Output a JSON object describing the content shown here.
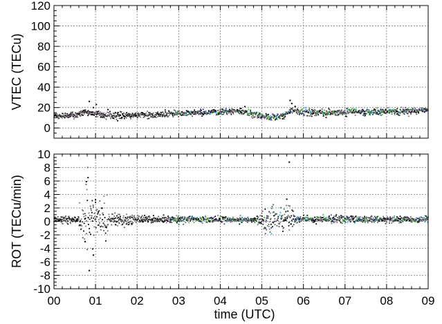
{
  "chart_data": [
    {
      "type": "scatter",
      "title": "",
      "ylabel": "VTEC (TECu)",
      "xlabel": "",
      "xlim": [
        0,
        9
      ],
      "ylim": [
        -10,
        120
      ],
      "yticks": [
        0,
        20,
        40,
        60,
        80,
        100,
        120
      ],
      "xticks": [
        0,
        1,
        2,
        3,
        4,
        5,
        6,
        7,
        8,
        9
      ],
      "show_x_tick_labels": false,
      "grid": true,
      "series_colors": [
        "#000000",
        "#555555",
        "#2f8f2f",
        "#3fbf3f",
        "#1a2a6e",
        "#2aa8c8",
        "#8a6a8a",
        "#777777"
      ],
      "baseline": [
        [
          0.0,
          12
        ],
        [
          0.5,
          12
        ],
        [
          0.75,
          16
        ],
        [
          1.0,
          14
        ],
        [
          1.5,
          12
        ],
        [
          2.0,
          12.5
        ],
        [
          2.5,
          13
        ],
        [
          3.0,
          14
        ],
        [
          3.5,
          15
        ],
        [
          4.0,
          15.5
        ],
        [
          4.5,
          16.5
        ],
        [
          4.8,
          14
        ],
        [
          5.0,
          11
        ],
        [
          5.3,
          11
        ],
        [
          5.6,
          13
        ],
        [
          5.7,
          18
        ],
        [
          5.9,
          16
        ],
        [
          6.5,
          15
        ],
        [
          7.0,
          15
        ],
        [
          7.5,
          15.5
        ],
        [
          8.0,
          16
        ],
        [
          8.5,
          16.5
        ],
        [
          9.0,
          17
        ]
      ],
      "spread": 3,
      "outliers": [
        [
          0.85,
          26
        ],
        [
          1.02,
          23
        ],
        [
          5.68,
          27
        ],
        [
          5.72,
          24
        ],
        [
          0.95,
          20
        ],
        [
          1.3,
          18
        ],
        [
          5.5,
          9
        ],
        [
          5.8,
          21
        ]
      ]
    },
    {
      "type": "scatter",
      "title": "",
      "ylabel": "ROT (TECu/min)",
      "xlabel": "time (UTC)",
      "xlim": [
        0,
        9
      ],
      "ylim": [
        -10,
        10
      ],
      "yticks": [
        -10,
        -8,
        -6,
        -4,
        -2,
        0,
        2,
        4,
        6,
        8,
        10
      ],
      "xticks": [
        0,
        1,
        2,
        3,
        4,
        5,
        6,
        7,
        8,
        9
      ],
      "xtick_labels": [
        "00",
        "01",
        "02",
        "03",
        "04",
        "05",
        "06",
        "07",
        "08",
        "09"
      ],
      "grid": true,
      "series_colors": [
        "#000000",
        "#555555",
        "#2f8f2f",
        "#3fbf3f",
        "#1a2a6e",
        "#2aa8c8",
        "#8a6a8a",
        "#777777"
      ],
      "baseline": [
        [
          0.0,
          0.3
        ],
        [
          9.0,
          0.3
        ]
      ],
      "spread": 0.5,
      "disturbance_windows": [
        {
          "x_from": 0.6,
          "x_to": 1.3,
          "amplitude": 4.5
        },
        {
          "x_from": 1.3,
          "x_to": 1.9,
          "amplitude": 1.5
        },
        {
          "x_from": 4.9,
          "x_to": 5.8,
          "amplitude": 2.5
        }
      ],
      "outliers": [
        [
          0.82,
          6.5
        ],
        [
          0.78,
          5.9
        ],
        [
          0.85,
          -7.3
        ],
        [
          0.95,
          -5.0
        ],
        [
          5.66,
          8.8
        ],
        [
          5.6,
          3.3
        ],
        [
          1.0,
          3.2
        ],
        [
          0.75,
          -3.0
        ]
      ]
    }
  ]
}
